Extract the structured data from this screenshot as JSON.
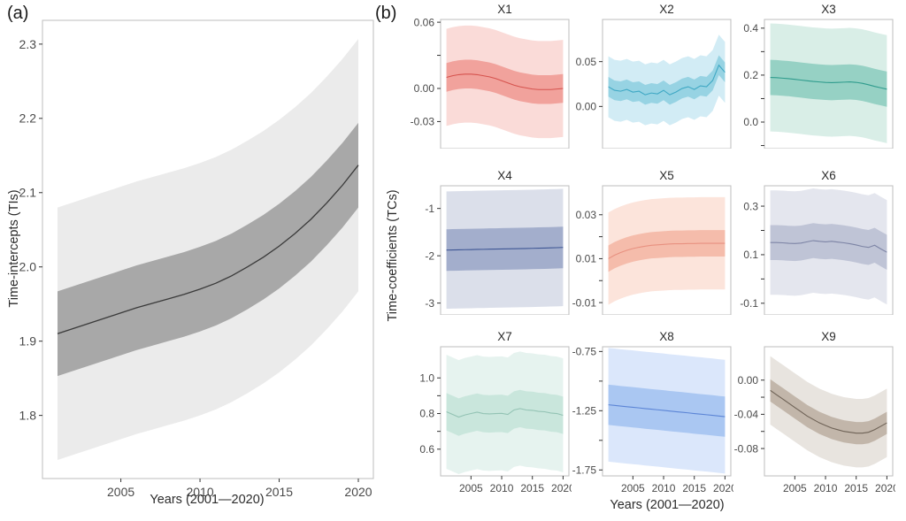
{
  "figure": {
    "panel_a_label": "(a)",
    "panel_b_label": "(b)",
    "panel_a": {
      "ylabel": "Time-intercepts (TIs)",
      "xlabel": "Years (2001—2020)"
    },
    "panel_b": {
      "ylabel": "Time-coefficients (TCs)",
      "xlabel": "Years (2001—2020)"
    }
  },
  "chart_years": [
    2001,
    2002,
    2003,
    2004,
    2005,
    2006,
    2007,
    2008,
    2009,
    2010,
    2011,
    2012,
    2013,
    2014,
    2015,
    2016,
    2017,
    2018,
    2019,
    2020
  ],
  "chart_data": [
    {
      "id": "a",
      "type": "line",
      "title": "",
      "xlabel": "Years (2001—2020)",
      "ylabel": "Time-intercepts (TIs)",
      "line": [
        1.91,
        1.917,
        1.924,
        1.931,
        1.938,
        1.945,
        1.951,
        1.957,
        1.963,
        1.97,
        1.978,
        1.988,
        2.0,
        2.013,
        2.028,
        2.045,
        2.064,
        2.086,
        2.11,
        2.137
      ],
      "inner_hw": 0.057,
      "outer_hw": 0.17,
      "ylim": [
        1.715,
        2.332
      ],
      "yticks": [
        [
          2.3,
          "2.3"
        ],
        [
          2.2,
          "2.2"
        ],
        [
          2.1,
          "2.1"
        ],
        [
          2.0,
          "2.0"
        ],
        [
          1.9,
          "1.9"
        ],
        [
          1.8,
          "1.8"
        ]
      ],
      "xticks": [
        2005,
        2010,
        2015,
        2020
      ],
      "colors": {
        "line": "#3a3a3a",
        "inner": "#a8a8a8",
        "outer": "#ebebeb"
      }
    },
    {
      "id": "x1",
      "type": "line",
      "title": "X1",
      "line": [
        0.01,
        0.0115,
        0.0125,
        0.013,
        0.013,
        0.0125,
        0.0115,
        0.0105,
        0.009,
        0.007,
        0.005,
        0.003,
        0.0015,
        0.0005,
        -0.0005,
        -0.001,
        -0.001,
        -0.001,
        -0.0005,
        0.0
      ],
      "inner_hw": 0.013,
      "outer_hw": 0.044,
      "ylim": [
        -0.0545,
        0.0625
      ],
      "yticks": [
        [
          0.06,
          "0.06"
        ],
        [
          0.03,
          ""
        ],
        [
          0.0,
          "0.00"
        ],
        [
          -0.03,
          "-0.03"
        ]
      ],
      "xticks": [],
      "colors": {
        "line": "#d6534e",
        "inner": "#f1a29c",
        "outer": "#fadbd8"
      }
    },
    {
      "id": "x2",
      "type": "line",
      "title": "X2",
      "line": [
        0.022,
        0.018,
        0.017,
        0.019,
        0.016,
        0.017,
        0.013,
        0.015,
        0.014,
        0.018,
        0.013,
        0.016,
        0.02,
        0.022,
        0.019,
        0.023,
        0.022,
        0.029,
        0.046,
        0.038
      ],
      "inner_hw": 0.011,
      "outer_hw": 0.034,
      "ylim": [
        -0.047,
        0.097
      ],
      "yticks": [
        [
          0.05,
          "0.05"
        ],
        [
          0.0,
          "0.00"
        ]
      ],
      "xticks": [],
      "colors": {
        "line": "#3fa8c4",
        "inner": "#97d3e3",
        "outer": "#d2ecf5"
      }
    },
    {
      "id": "x3",
      "type": "line",
      "title": "X3",
      "line": [
        0.19,
        0.189,
        0.187,
        0.185,
        0.182,
        0.179,
        0.176,
        0.173,
        0.171,
        0.169,
        0.168,
        0.169,
        0.17,
        0.171,
        0.169,
        0.165,
        0.159,
        0.152,
        0.146,
        0.14
      ],
      "inner_hw": 0.075,
      "outer_hw": 0.23,
      "ylim": [
        -0.113,
        0.437
      ],
      "yticks": [
        [
          0.4,
          "0.4"
        ],
        [
          0.3,
          ""
        ],
        [
          0.2,
          "0.2"
        ],
        [
          0.1,
          ""
        ],
        [
          0.0,
          "0.0"
        ],
        [
          -0.1,
          ""
        ]
      ],
      "xticks": [],
      "colors": {
        "line": "#2f9c8d",
        "inner": "#96d1c4",
        "outer": "#d9eee7"
      }
    },
    {
      "id": "x4",
      "type": "line",
      "title": "X4",
      "line": [
        -1.88,
        -1.877,
        -1.874,
        -1.871,
        -1.869,
        -1.866,
        -1.864,
        -1.861,
        -1.859,
        -1.856,
        -1.854,
        -1.851,
        -1.849,
        -1.846,
        -1.843,
        -1.84,
        -1.837,
        -1.833,
        -1.829,
        -1.824
      ],
      "inner_hw": 0.44,
      "outer_hw": 1.24,
      "ylim": [
        -3.25,
        -0.52
      ],
      "yticks": [
        [
          -1,
          "-1"
        ],
        [
          -2,
          "-2"
        ],
        [
          -3,
          "-3"
        ]
      ],
      "xticks": [],
      "colors": {
        "line": "#3e5694",
        "inner": "#a3aecc",
        "outer": "#dbdfea"
      }
    },
    {
      "id": "x5",
      "type": "line",
      "title": "X5",
      "line": [
        0.01,
        0.0116,
        0.0128,
        0.0138,
        0.0146,
        0.0152,
        0.0157,
        0.0161,
        0.0163,
        0.0165,
        0.0167,
        0.0168,
        0.0168,
        0.0169,
        0.0169,
        0.017,
        0.017,
        0.017,
        0.017,
        0.017
      ],
      "inner_hw": 0.006,
      "outer_hw": 0.021,
      "ylim": [
        -0.0156,
        0.0432
      ],
      "yticks": [
        [
          0.03,
          "0.03"
        ],
        [
          0.02,
          ""
        ],
        [
          0.01,
          "0.01"
        ],
        [
          0.0,
          ""
        ],
        [
          -0.01,
          "-0.01"
        ]
      ],
      "xticks": [],
      "colors": {
        "line": "#e89180",
        "inner": "#f5bcab",
        "outer": "#fce4db"
      }
    },
    {
      "id": "x6",
      "type": "line",
      "title": "X6",
      "line": [
        0.15,
        0.15,
        0.149,
        0.147,
        0.146,
        0.148,
        0.153,
        0.158,
        0.155,
        0.153,
        0.155,
        0.152,
        0.149,
        0.145,
        0.14,
        0.134,
        0.13,
        0.139,
        0.124,
        0.11
      ],
      "inner_hw": 0.072,
      "outer_hw": 0.215,
      "ylim": [
        -0.148,
        0.384
      ],
      "yticks": [
        [
          0.3,
          "0.3"
        ],
        [
          0.2,
          ""
        ],
        [
          0.1,
          "0.1"
        ],
        [
          0.0,
          ""
        ],
        [
          -0.1,
          "-0.1"
        ]
      ],
      "xticks": [],
      "colors": {
        "line": "#7d84a5",
        "inner": "#bfc4d6",
        "outer": "#e4e6ee"
      }
    },
    {
      "id": "x7",
      "type": "line",
      "title": "X7",
      "line": [
        0.81,
        0.795,
        0.78,
        0.792,
        0.8,
        0.808,
        0.8,
        0.798,
        0.8,
        0.801,
        0.795,
        0.82,
        0.828,
        0.82,
        0.818,
        0.812,
        0.81,
        0.803,
        0.8,
        0.79
      ],
      "inner_hw": 0.105,
      "outer_hw": 0.32,
      "ylim": [
        0.45,
        1.175
      ],
      "yticks": [
        [
          1.0,
          "1.0"
        ],
        [
          0.9,
          ""
        ],
        [
          0.8,
          "0.8"
        ],
        [
          0.7,
          ""
        ],
        [
          0.6,
          "0.6"
        ]
      ],
      "xticks": [
        2005,
        2010,
        2015,
        2020
      ],
      "colors": {
        "line": "#93c3b4",
        "inner": "#c9e6dc",
        "outer": "#e6f3ef"
      }
    },
    {
      "id": "x8",
      "type": "line",
      "title": "X8",
      "line": [
        -1.2,
        -1.205,
        -1.211,
        -1.216,
        -1.221,
        -1.226,
        -1.232,
        -1.237,
        -1.242,
        -1.247,
        -1.253,
        -1.258,
        -1.263,
        -1.268,
        -1.274,
        -1.279,
        -1.284,
        -1.289,
        -1.295,
        -1.3
      ],
      "inner_hw": 0.17,
      "outer_hw": 0.48,
      "ylim": [
        -1.8,
        -0.71
      ],
      "yticks": [
        [
          -0.75,
          "-0.75"
        ],
        [
          -1.0,
          ""
        ],
        [
          -1.25,
          "-1.25"
        ],
        [
          -1.5,
          ""
        ],
        [
          -1.75,
          "-1.75"
        ]
      ],
      "xticks": [
        2005,
        2010,
        2015,
        2020
      ],
      "colors": {
        "line": "#5c85d6",
        "inner": "#aac7f2",
        "outer": "#dbe7fb"
      }
    },
    {
      "id": "x9",
      "type": "line",
      "title": "X9",
      "line": [
        -0.012,
        -0.017,
        -0.022,
        -0.027,
        -0.032,
        -0.037,
        -0.042,
        -0.046,
        -0.05,
        -0.053,
        -0.056,
        -0.058,
        -0.06,
        -0.061,
        -0.062,
        -0.062,
        -0.061,
        -0.058,
        -0.054,
        -0.05
      ],
      "inner_hw": 0.013,
      "outer_hw": 0.04,
      "ylim": [
        -0.112,
        0.039
      ],
      "yticks": [
        [
          0.0,
          "0.00"
        ],
        [
          -0.02,
          ""
        ],
        [
          -0.04,
          "-0.04"
        ],
        [
          -0.06,
          ""
        ],
        [
          -0.08,
          "-0.08"
        ]
      ],
      "xticks": [
        2005,
        2010,
        2015,
        2020
      ],
      "colors": {
        "line": "#6e6256",
        "inner": "#c2b6aa",
        "outer": "#e8e4df"
      }
    }
  ]
}
